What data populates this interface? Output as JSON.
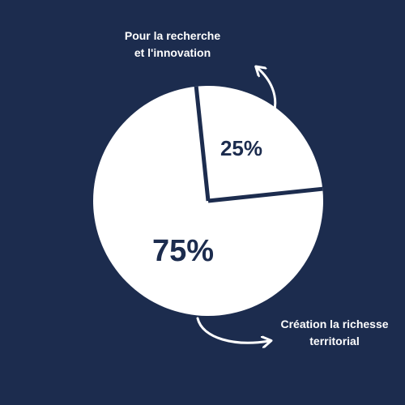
{
  "chart_data": {
    "type": "pie",
    "slices": [
      {
        "value": 25,
        "label": "25%",
        "callout": [
          "Pour la recherche",
          "et l'innovation"
        ]
      },
      {
        "value": 75,
        "label": "75%",
        "callout": [
          "Création la richesse",
          "territorial"
        ]
      }
    ],
    "colors": {
      "background": "#1c2c4e",
      "slice_fill": "#ffffff",
      "separator": "#1c2c4e",
      "text": "#ffffff",
      "slice_label": "#1c2c4e"
    },
    "legend": "none"
  }
}
